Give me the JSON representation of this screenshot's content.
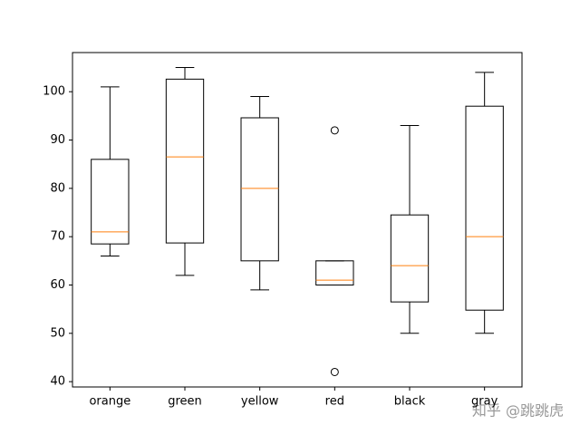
{
  "chart_data": {
    "type": "box",
    "categories": [
      "orange",
      "green",
      "yellow",
      "red",
      "black",
      "gray"
    ],
    "boxes": [
      {
        "whislo": 66,
        "q1": 68.5,
        "med": 71,
        "q3": 86,
        "whishi": 101,
        "fliers": []
      },
      {
        "whislo": 62,
        "q1": 68.7,
        "med": 86.5,
        "q3": 102.6,
        "whishi": 105,
        "fliers": []
      },
      {
        "whislo": 59,
        "q1": 65,
        "med": 80,
        "q3": 94.6,
        "whishi": 99,
        "fliers": []
      },
      {
        "whislo": 60,
        "q1": 60,
        "med": 61,
        "q3": 65,
        "whishi": 65,
        "fliers": [
          92,
          42
        ]
      },
      {
        "whislo": 50,
        "q1": 56.5,
        "med": 64,
        "q3": 74.5,
        "whishi": 93,
        "fliers": []
      },
      {
        "whislo": 50,
        "q1": 54.8,
        "med": 70,
        "q3": 97,
        "whishi": 104,
        "fliers": []
      }
    ],
    "box_color": "#000000",
    "median_color": "#ff7f0e",
    "ylim": [
      38.9,
      108.1
    ],
    "yticks": [
      40,
      50,
      60,
      70,
      80,
      90,
      100
    ],
    "grid": false,
    "watermark": "知乎 @跳跳虎"
  }
}
